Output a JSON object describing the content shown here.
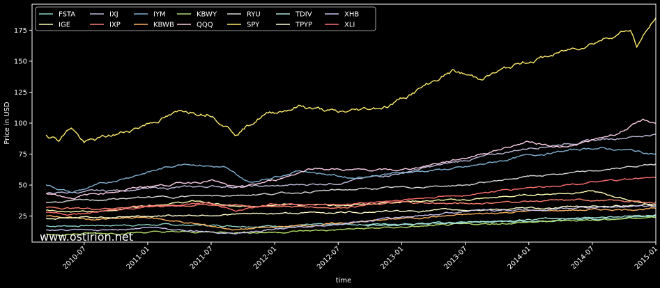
{
  "chart_data": {
    "type": "line",
    "xlabel": "time",
    "ylabel": "Price in USD",
    "watermark": "www.ostirion.net",
    "x_ticks": [
      "2010-07",
      "2011-01",
      "2011-07",
      "2012-01",
      "2012-07",
      "2013-01",
      "2013-07",
      "2014-01",
      "2014-07",
      "2015-01"
    ],
    "x_range": [
      "2010-02-01",
      "2015-01-01"
    ],
    "y_ticks": [
      25,
      50,
      75,
      100,
      125,
      150,
      175
    ],
    "ylim": [
      4,
      196
    ],
    "legend_placement": "top-left",
    "grid": false,
    "series": [
      {
        "name": "FSTA",
        "color": "#8dd3c7",
        "values": [
          [
            2010.2,
            17
          ],
          [
            2011.0,
            18
          ],
          [
            2012.0,
            17
          ],
          [
            2013.0,
            19
          ],
          [
            2014.0,
            21
          ],
          [
            2015.0,
            25
          ]
        ]
      },
      {
        "name": "IGE",
        "color": "#feffb3",
        "values": [
          [
            2010.2,
            30
          ],
          [
            2010.6,
            28
          ],
          [
            2011.0,
            34
          ],
          [
            2011.4,
            37
          ],
          [
            2011.7,
            32
          ],
          [
            2012.0,
            35
          ],
          [
            2012.5,
            33
          ],
          [
            2013.0,
            37
          ],
          [
            2013.5,
            38
          ],
          [
            2014.0,
            42
          ],
          [
            2014.5,
            45
          ],
          [
            2015.0,
            33
          ]
        ]
      },
      {
        "name": "IXJ",
        "color": "#bebada",
        "values": [
          [
            2010.2,
            43
          ],
          [
            2011.0,
            47
          ],
          [
            2011.5,
            49
          ],
          [
            2012.0,
            49
          ],
          [
            2012.5,
            52
          ],
          [
            2013.0,
            60
          ],
          [
            2013.5,
            70
          ],
          [
            2014.0,
            80
          ],
          [
            2014.5,
            86
          ],
          [
            2015.0,
            91
          ]
        ]
      },
      {
        "name": "IXP",
        "color": "#fb8072",
        "values": [
          [
            2010.2,
            32
          ],
          [
            2010.6,
            31
          ],
          [
            2011.0,
            33
          ],
          [
            2011.5,
            34
          ],
          [
            2012.0,
            33
          ],
          [
            2012.5,
            32
          ],
          [
            2013.0,
            36
          ],
          [
            2013.5,
            35
          ],
          [
            2014.0,
            37
          ],
          [
            2014.5,
            38
          ],
          [
            2015.0,
            36
          ]
        ]
      },
      {
        "name": "IYM",
        "color": "#80b1d3",
        "values": [
          [
            2010.2,
            50
          ],
          [
            2010.4,
            44
          ],
          [
            2010.9,
            58
          ],
          [
            2011.3,
            68
          ],
          [
            2011.6,
            64
          ],
          [
            2011.8,
            52
          ],
          [
            2012.2,
            62
          ],
          [
            2012.6,
            56
          ],
          [
            2013.0,
            60
          ],
          [
            2013.5,
            64
          ],
          [
            2014.0,
            74
          ],
          [
            2014.5,
            80
          ],
          [
            2014.8,
            78
          ],
          [
            2015.0,
            75
          ]
        ]
      },
      {
        "name": "KBWB",
        "color": "#fdb462",
        "values": [
          [
            2010.2,
            25
          ],
          [
            2010.6,
            22
          ],
          [
            2011.0,
            24
          ],
          [
            2011.7,
            14
          ],
          [
            2012.0,
            16
          ],
          [
            2012.5,
            19
          ],
          [
            2013.0,
            23
          ],
          [
            2013.5,
            26
          ],
          [
            2014.0,
            29
          ],
          [
            2014.5,
            30
          ],
          [
            2015.0,
            31
          ]
        ]
      },
      {
        "name": "KBWY",
        "color": "#b3de69",
        "values": [
          [
            2010.2,
            10
          ],
          [
            2011.0,
            12
          ],
          [
            2012.0,
            12
          ],
          [
            2013.0,
            16
          ],
          [
            2013.5,
            18
          ],
          [
            2014.0,
            20
          ],
          [
            2014.5,
            22
          ],
          [
            2015.0,
            24
          ]
        ]
      },
      {
        "name": "QQQ",
        "color": "#fccde5",
        "values": [
          [
            2010.2,
            44
          ],
          [
            2010.4,
            40
          ],
          [
            2011.0,
            49
          ],
          [
            2011.5,
            54
          ],
          [
            2011.7,
            47
          ],
          [
            2012.0,
            54
          ],
          [
            2012.3,
            64
          ],
          [
            2012.6,
            62
          ],
          [
            2013.0,
            62
          ],
          [
            2013.5,
            72
          ],
          [
            2014.0,
            85
          ],
          [
            2014.3,
            80
          ],
          [
            2014.7,
            92
          ],
          [
            2014.9,
            102
          ],
          [
            2015.0,
            100
          ]
        ]
      },
      {
        "name": "RYU",
        "color": "#d9d9d9",
        "values": [
          [
            2010.2,
            36
          ],
          [
            2011.0,
            40
          ],
          [
            2012.0,
            43
          ],
          [
            2012.5,
            46
          ],
          [
            2013.0,
            48
          ],
          [
            2013.5,
            50
          ],
          [
            2014.0,
            57
          ],
          [
            2014.5,
            61
          ],
          [
            2015.0,
            67
          ]
        ]
      },
      {
        "name": "SPY",
        "color": "#ffed6f",
        "values": [
          [
            2010.2,
            91
          ],
          [
            2010.3,
            87
          ],
          [
            2010.4,
            97
          ],
          [
            2010.5,
            84
          ],
          [
            2010.8,
            92
          ],
          [
            2011.0,
            100
          ],
          [
            2011.3,
            110
          ],
          [
            2011.5,
            108
          ],
          [
            2011.7,
            92
          ],
          [
            2011.9,
            106
          ],
          [
            2012.2,
            114
          ],
          [
            2012.5,
            108
          ],
          [
            2012.9,
            114
          ],
          [
            2013.0,
            120
          ],
          [
            2013.4,
            142
          ],
          [
            2013.6,
            136
          ],
          [
            2014.0,
            150
          ],
          [
            2014.2,
            155
          ],
          [
            2014.5,
            165
          ],
          [
            2014.8,
            176
          ],
          [
            2014.85,
            162
          ],
          [
            2015.0,
            185
          ]
        ]
      },
      {
        "name": "TDIV",
        "color": "#a9e3d9",
        "values": [
          [
            2010.2,
            null
          ],
          [
            2012.6,
            null
          ],
          [
            2012.7,
            17
          ],
          [
            2013.0,
            18
          ],
          [
            2013.5,
            20
          ],
          [
            2014.0,
            22
          ],
          [
            2014.5,
            24
          ],
          [
            2015.0,
            26
          ]
        ]
      },
      {
        "name": "TPYP",
        "color": "#ffffcc",
        "values": [
          [
            2010.2,
            23
          ],
          [
            2011.0,
            25
          ],
          [
            2012.0,
            27
          ],
          [
            2013.0,
            29
          ],
          [
            2014.0,
            31
          ],
          [
            2014.5,
            33
          ],
          [
            2015.0,
            34
          ]
        ]
      },
      {
        "name": "XHB",
        "color": "#c9c3ef",
        "values": [
          [
            2010.2,
            14
          ],
          [
            2010.6,
            13
          ],
          [
            2011.0,
            16
          ],
          [
            2011.7,
            11
          ],
          [
            2012.0,
            14
          ],
          [
            2012.5,
            19
          ],
          [
            2013.0,
            24
          ],
          [
            2013.5,
            29
          ],
          [
            2014.0,
            30
          ],
          [
            2014.5,
            32
          ],
          [
            2015.0,
            33
          ]
        ]
      },
      {
        "name": "XLI",
        "color": "#ff6f6f",
        "values": [
          [
            2010.2,
            28
          ],
          [
            2010.4,
            26
          ],
          [
            2011.0,
            33
          ],
          [
            2011.5,
            36
          ],
          [
            2011.7,
            29
          ],
          [
            2012.0,
            35
          ],
          [
            2012.5,
            34
          ],
          [
            2013.0,
            38
          ],
          [
            2013.5,
            42
          ],
          [
            2014.0,
            48
          ],
          [
            2014.5,
            52
          ],
          [
            2015.0,
            56
          ]
        ]
      }
    ]
  }
}
